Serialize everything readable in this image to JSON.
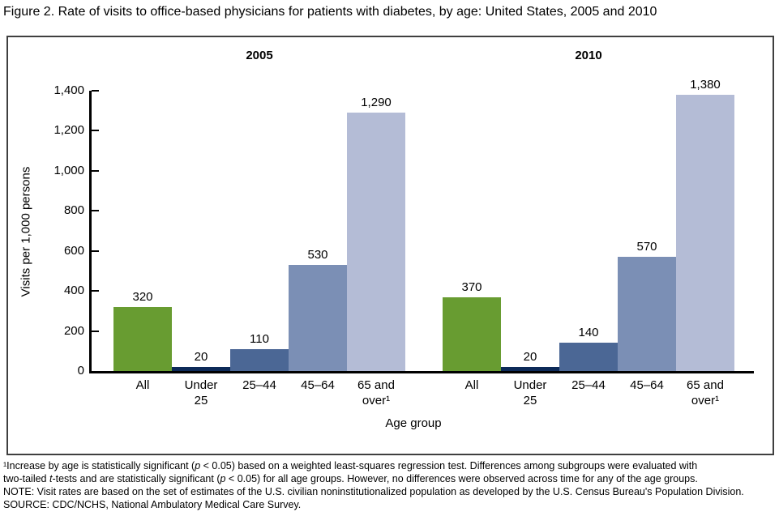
{
  "chart_data": {
    "type": "bar",
    "title": "Figure 2. Rate of visits to office-based physicians for patients with diabetes, by age: United States, 2005 and 2010",
    "xlabel": "Age group",
    "ylabel": "Visits per 1,000 persons",
    "ylim": [
      0,
      1400
    ],
    "ytick_values": [
      0,
      200,
      400,
      600,
      800,
      1000,
      1200,
      1400
    ],
    "ytick_labels": [
      "0",
      "200",
      "400",
      "600",
      "800",
      "1,000",
      "1,200",
      "1,400"
    ],
    "categories": [
      "All",
      "Under\n25",
      "25–44",
      "45–64",
      "65 and\nover¹"
    ],
    "category_colors": [
      "#689c31",
      "#0d2a58",
      "#4b6795",
      "#7b8fb5",
      "#b4bcd6"
    ],
    "grid": false,
    "legend": "none",
    "series": [
      {
        "name": "2005",
        "values": [
          320,
          20,
          110,
          530,
          1290
        ],
        "value_labels": [
          "320",
          "20",
          "110",
          "530",
          "1,290"
        ]
      },
      {
        "name": "2010",
        "values": [
          370,
          20,
          140,
          570,
          1380
        ],
        "value_labels": [
          "370",
          "20",
          "140",
          "570",
          "1,380"
        ]
      }
    ]
  },
  "footnotes": {
    "lines": [
      [
        {
          "t": "¹Increase by age is statistically significant ("
        },
        {
          "t": "p",
          "i": true
        },
        {
          "t": " < 0.05) based on a weighted least-squares regression test. Differences among subgroups were evaluated with"
        }
      ],
      [
        {
          "t": "two-tailed "
        },
        {
          "t": "t",
          "i": true
        },
        {
          "t": "-tests and are statistically significant ("
        },
        {
          "t": "p",
          "i": true
        },
        {
          "t": " < 0.05) for all age groups. However, no differences were observed across time for any of the age groups."
        }
      ],
      [
        {
          "t": "NOTE: Visit rates are based on the set of estimates of the U.S. civilian noninstitutionalized population as developed by the U.S. Census Bureau's Population Division."
        }
      ],
      [
        {
          "t": "SOURCE: CDC/NCHS, National Ambulatory Medical Care Survey."
        }
      ]
    ]
  }
}
